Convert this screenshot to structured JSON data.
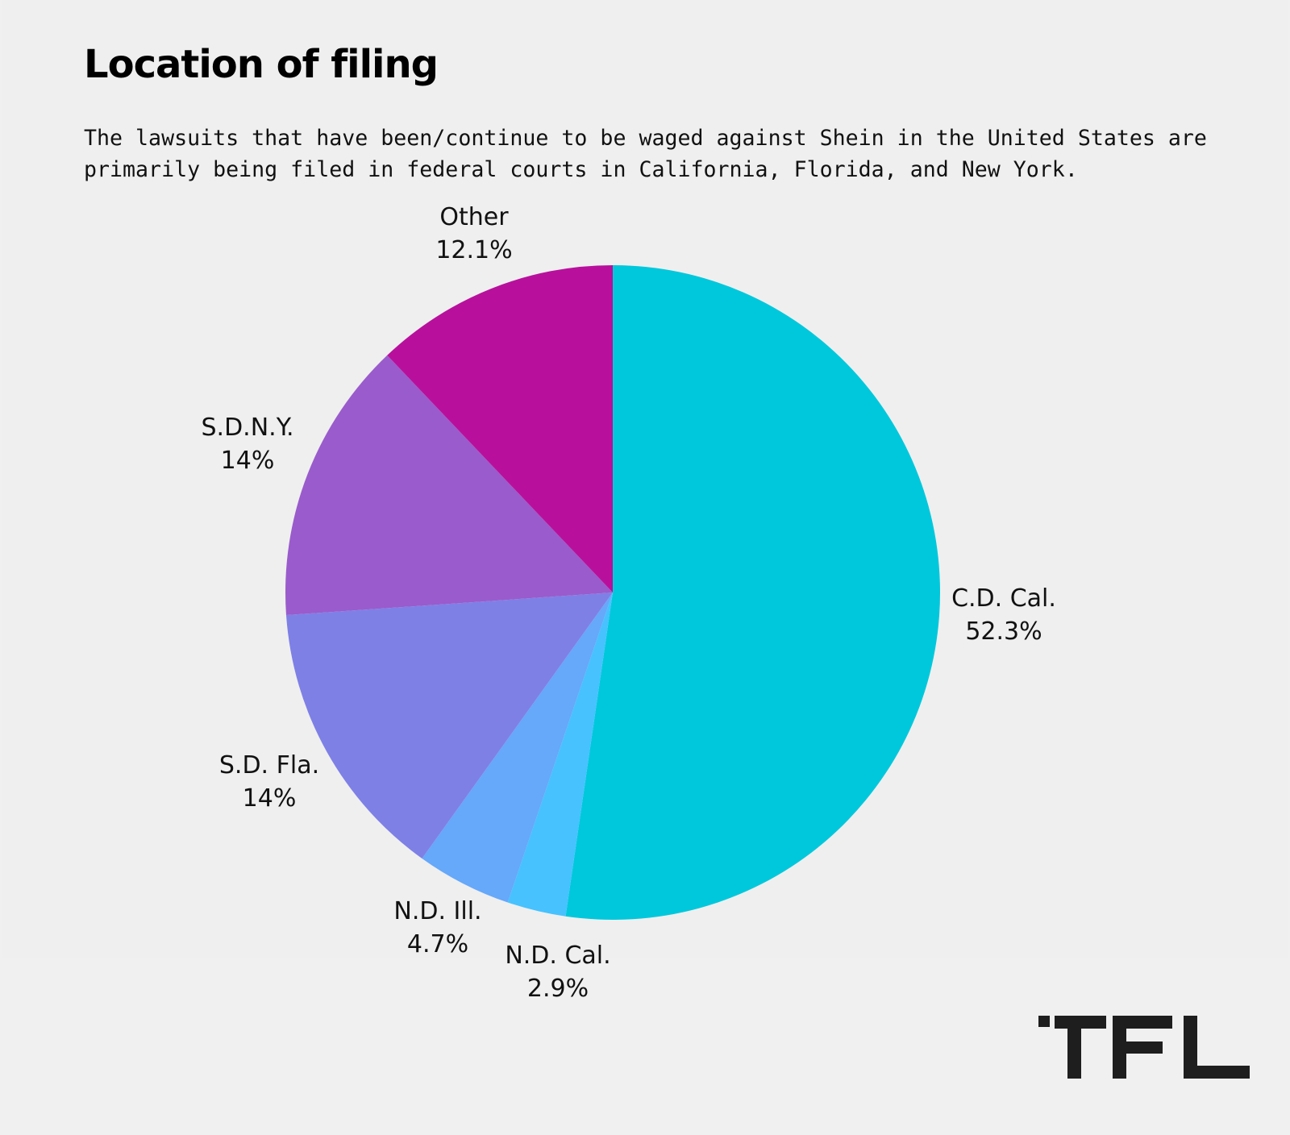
{
  "header": {
    "title": "Location of filing",
    "subtitle": "The lawsuits that have been/continue to be waged against Shein in the United States are primarily being filed in federal courts in California, Florida, and New York."
  },
  "chart_data": {
    "type": "pie",
    "title": "Location of filing",
    "slices": [
      {
        "label": "C.D. Cal.",
        "value": 52.3,
        "display": "52.3%",
        "color": "#00c8dc"
      },
      {
        "label": "N.D. Cal.",
        "value": 2.9,
        "display": "2.9%",
        "color": "#47c2ff"
      },
      {
        "label": "N.D. Ill.",
        "value": 4.7,
        "display": "4.7%",
        "color": "#66a8fa"
      },
      {
        "label": "S.D. Fla.",
        "value": 14,
        "display": "14%",
        "color": "#7e80e6"
      },
      {
        "label": "S.D.N.Y.",
        "value": 14,
        "display": "14%",
        "color": "#9a5bcc"
      },
      {
        "label": "Other",
        "value": 12.1,
        "display": "12.1%",
        "color": "#b8109c"
      }
    ],
    "direction": "clockwise from top"
  },
  "logo": {
    "text": "TFL",
    "color": "#1e1e1e"
  }
}
